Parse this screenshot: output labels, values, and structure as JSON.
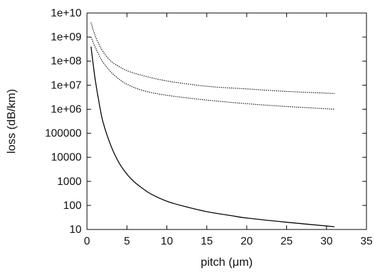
{
  "chart_data": {
    "type": "line",
    "xlabel": "pitch (μm)",
    "ylabel": "loss (dB/km)",
    "xlim": [
      0,
      35
    ],
    "ylim": [
      10,
      10000000000
    ],
    "yscale": "log",
    "grid": false,
    "legend": "none",
    "x_ticks": [
      0,
      5,
      10,
      15,
      20,
      25,
      30,
      35
    ],
    "x_tick_labels": [
      "0",
      "5",
      "10",
      "15",
      "20",
      "25",
      "30",
      "35"
    ],
    "y_ticks": [
      10,
      100,
      1000,
      10000,
      100000,
      1000000,
      10000000,
      100000000,
      1000000000,
      10000000000
    ],
    "y_tick_labels": [
      "10",
      "100",
      "1000",
      "10000",
      "100000",
      "1e+06",
      "1e+07",
      "1e+08",
      "1e+09",
      "1e+10"
    ],
    "series": [
      {
        "style": "solid",
        "color": "#000000",
        "x": [
          0.5,
          1,
          1.5,
          2,
          3,
          4,
          5,
          6,
          7,
          8,
          10,
          12,
          15,
          18,
          20,
          25,
          31
        ],
        "y": [
          400000000,
          20000000,
          2000000,
          300000,
          30000,
          6000,
          2000,
          900,
          500,
          300,
          150,
          95,
          55,
          38,
          30,
          20,
          13
        ]
      },
      {
        "style": "dotted",
        "color": "#000000",
        "x": [
          0.5,
          1,
          1.5,
          2,
          3,
          4,
          5,
          7,
          10,
          15,
          20,
          25,
          31
        ],
        "y": [
          4000000000,
          1200000000,
          500000000,
          250000000,
          100000000,
          60000000,
          40000000,
          25000000,
          15000000,
          9000000,
          7000000,
          5500000,
          4500000
        ]
      },
      {
        "style": "dotted",
        "color": "#000000",
        "x": [
          0.5,
          1,
          1.5,
          2,
          3,
          4,
          5,
          7,
          10,
          15,
          20,
          25,
          31
        ],
        "y": [
          1000000000,
          400000000,
          180000000,
          90000000,
          35000000,
          18000000,
          11000000,
          6000000,
          3800000,
          2400000,
          1700000,
          1300000,
          1000000
        ]
      }
    ]
  }
}
